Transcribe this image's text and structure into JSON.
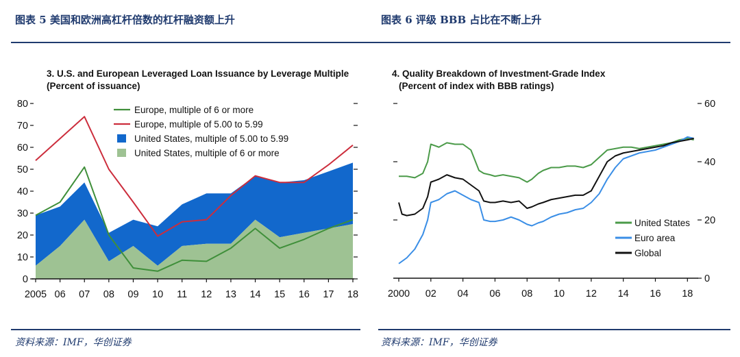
{
  "headers": {
    "left": "图表 5 美国和欧洲高杠杆倍数的杠杆融资额上升",
    "right": "图表 6 评级 BBB 占比在不断上升"
  },
  "footers": {
    "left": "资料来源：IMF，华创证券",
    "right": "资料来源：IMF，华创证券"
  },
  "colors": {
    "header_blue": "#1f3a6e",
    "europe_6plus": "#3f8f3a",
    "europe_5to599": "#cc2d3c",
    "us_5to599": "#1268cc",
    "us_6plus": "#9ec293",
    "us_line": "#4a9a48",
    "euro_line": "#3a8ee6",
    "global_line": "#111111"
  },
  "chart_data": [
    {
      "type": "area",
      "title": "3. U.S. and European Leveraged Loan Issuance by Leverage Multiple",
      "subtitle": "(Percent of issuance)",
      "xlabel": "",
      "ylabel": "",
      "ylim": [
        0,
        80
      ],
      "yticks": [
        "0",
        "10",
        "20",
        "30",
        "40",
        "50",
        "60",
        "70",
        "80"
      ],
      "categories": [
        "2005",
        "06",
        "07",
        "08",
        "09",
        "10",
        "11",
        "12",
        "13",
        "14",
        "15",
        "16",
        "17",
        "18"
      ],
      "legend": [
        "Europe, multiple of 6 or more",
        "Europe, multiple of 5.00 to 5.99",
        "United States, multiple of 5.00 to 5.99",
        "United States, multiple of 6 or more"
      ],
      "series": [
        {
          "name": "United States, multiple of 6 or more",
          "kind": "area",
          "values": [
            6,
            15,
            27,
            8,
            15,
            6,
            15,
            16,
            16,
            27,
            19,
            21,
            23,
            25
          ]
        },
        {
          "name": "United States, multiple of 5.00 to 5.99",
          "kind": "stacked-area",
          "values": [
            23,
            18,
            17,
            13,
            12,
            18,
            19,
            23,
            23,
            20,
            25,
            24,
            26,
            28
          ]
        },
        {
          "name": "Europe, multiple of 6 or more",
          "kind": "line",
          "values": [
            29,
            35,
            51,
            20,
            5,
            3.5,
            8.5,
            8,
            14,
            23,
            14,
            18,
            23,
            27
          ]
        },
        {
          "name": "Europe, multiple of 5.00 to 5.99",
          "kind": "line",
          "values": [
            54,
            64,
            74,
            50,
            35,
            19.5,
            26,
            27,
            38,
            47,
            44,
            44,
            52,
            61
          ]
        }
      ]
    },
    {
      "type": "line",
      "title": "4. Quality Breakdown of Investment-Grade Index",
      "subtitle": "(Percent of index with BBB ratings)",
      "xlabel": "",
      "ylabel": "",
      "ylim": [
        0,
        60
      ],
      "yticks": [
        "0",
        "20",
        "40",
        "60"
      ],
      "xlim": [
        2000,
        2018.5
      ],
      "xticks": [
        {
          "value": 2000,
          "label": "2000"
        },
        {
          "value": 2002,
          "label": "02"
        },
        {
          "value": 2004,
          "label": "04"
        },
        {
          "value": 2006,
          "label": "06"
        },
        {
          "value": 2008,
          "label": "08"
        },
        {
          "value": 2010,
          "label": "10"
        },
        {
          "value": 2012,
          "label": "12"
        },
        {
          "value": 2014,
          "label": "14"
        },
        {
          "value": 2016,
          "label": "16"
        },
        {
          "value": 2018,
          "label": "18"
        }
      ],
      "legend": [
        "United States",
        "Euro area",
        "Global"
      ],
      "series": [
        {
          "name": "United States",
          "x": [
            2000,
            2000.5,
            2001,
            2001.5,
            2001.8,
            2002,
            2002.5,
            2003,
            2003.5,
            2004,
            2004.5,
            2005,
            2005.3,
            2005.7,
            2006,
            2006.5,
            2007,
            2007.5,
            2008,
            2008.3,
            2008.7,
            2009,
            2009.5,
            2010,
            2010.5,
            2011,
            2011.5,
            2012,
            2012.5,
            2013,
            2013.5,
            2014,
            2014.5,
            2015,
            2015.5,
            2016,
            2016.5,
            2017,
            2017.5,
            2018,
            2018.4
          ],
          "values": [
            35,
            35,
            34.5,
            36,
            40,
            46,
            45,
            46.5,
            46,
            46,
            44,
            37,
            36,
            35.5,
            35,
            35.5,
            35,
            34.5,
            33,
            34,
            36,
            37,
            38,
            38,
            38.5,
            38.5,
            38,
            39,
            41.5,
            44,
            44.5,
            45,
            45,
            44.5,
            45,
            45.5,
            46,
            46.5,
            47.5,
            48,
            47.5
          ]
        },
        {
          "name": "Euro area",
          "x": [
            2000,
            2000.5,
            2001,
            2001.5,
            2001.8,
            2002,
            2002.5,
            2003,
            2003.5,
            2004,
            2004.5,
            2005,
            2005.3,
            2005.7,
            2006,
            2006.5,
            2007,
            2007.5,
            2008,
            2008.3,
            2008.7,
            2009,
            2009.5,
            2010,
            2010.5,
            2011,
            2011.5,
            2012,
            2012.5,
            2013,
            2013.5,
            2014,
            2014.5,
            2015,
            2015.5,
            2016,
            2016.5,
            2017,
            2017.5,
            2018,
            2018.4
          ],
          "values": [
            5,
            7,
            10,
            15,
            20,
            26,
            27,
            29,
            30,
            28.5,
            27,
            26,
            20,
            19.5,
            19.5,
            20,
            21,
            20,
            18.5,
            18,
            19,
            19.5,
            21,
            22,
            22.5,
            23.5,
            24,
            26,
            29,
            34,
            38,
            41,
            42,
            43,
            43.5,
            44,
            45,
            46,
            47,
            48.5,
            48
          ]
        },
        {
          "name": "Global",
          "x": [
            2000,
            2000.2,
            2000.5,
            2001,
            2001.5,
            2001.8,
            2002,
            2002.5,
            2003,
            2003.5,
            2004,
            2004.5,
            2005,
            2005.3,
            2005.7,
            2006,
            2006.5,
            2007,
            2007.5,
            2008,
            2008.3,
            2008.7,
            2009,
            2009.5,
            2010,
            2010.5,
            2011,
            2011.5,
            2012,
            2012.5,
            2013,
            2013.5,
            2014,
            2014.5,
            2015,
            2015.5,
            2016,
            2016.5,
            2017,
            2017.5,
            2018,
            2018.4
          ],
          "values": [
            26,
            22,
            21.5,
            22,
            24,
            28,
            33,
            34,
            35.5,
            34.5,
            34,
            32,
            30,
            26.5,
            26,
            26,
            26.5,
            26,
            26.5,
            24,
            24.5,
            25.5,
            26,
            27,
            27.5,
            28,
            28.5,
            28.5,
            30,
            35,
            40,
            42,
            43,
            43.5,
            44,
            44.5,
            45,
            45.5,
            46.5,
            47,
            47.5,
            48
          ]
        }
      ]
    }
  ]
}
